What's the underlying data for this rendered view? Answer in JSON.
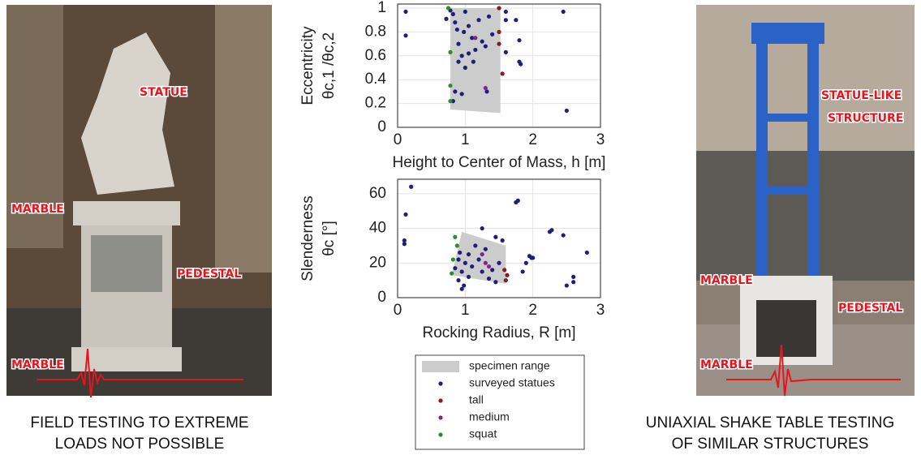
{
  "chart_data": [
    {
      "type": "scatter",
      "xlabel": "Height to Center of Mass, h [m]",
      "ylabel": [
        "Eccentricity",
        "θc,1 /θc,2"
      ],
      "xlim": [
        0,
        3
      ],
      "ylim": [
        0,
        1
      ],
      "xticks": [
        0,
        1,
        2,
        3
      ],
      "yticks": [
        0,
        0.2,
        0.4,
        0.6,
        0.8,
        1
      ],
      "grid": true,
      "series": [
        {
          "shape": "polygon",
          "color": "#cccccc",
          "x": [
            0.78,
            1.52,
            1.52,
            0.78
          ],
          "values": [
            1,
            1,
            0.12,
            0.15
          ]
        },
        {
          "color": "#1f1f7a",
          "x": [
            0.12,
            0.12,
            0.72,
            0.78,
            0.82,
            0.85,
            0.88,
            0.9,
            0.95,
            1.0,
            1.05,
            1.1,
            1.15,
            1.2,
            1.25,
            1.3,
            1.35,
            1.4,
            0.85,
            0.9,
            1.0,
            1.05,
            1.12,
            0.82,
            0.95,
            1.6,
            1.6,
            1.6,
            1.75,
            1.8,
            1.8,
            1.82,
            2.45,
            2.5,
            1.32,
            0.98
          ],
          "values": [
            0.97,
            0.77,
            0.91,
            0.98,
            0.95,
            0.88,
            0.82,
            0.7,
            0.6,
            0.97,
            0.85,
            0.75,
            0.65,
            0.9,
            0.72,
            0.68,
            0.93,
            0.78,
            0.3,
            0.55,
            0.5,
            0.62,
            0.55,
            0.22,
            0.28,
            0.97,
            0.9,
            0.63,
            0.9,
            0.73,
            0.55,
            0.53,
            0.97,
            0.14,
            0.3,
            0.8
          ]
        },
        {
          "color": "#8b1a1a",
          "x": [
            1.5,
            1.5,
            1.5,
            1.55
          ],
          "values": [
            1.0,
            0.8,
            0.7,
            0.45
          ]
        },
        {
          "color": "#7a2a8a",
          "x": [
            1.15,
            1.3
          ],
          "values": [
            0.75,
            0.33
          ]
        },
        {
          "color": "#2e8b2e",
          "x": [
            0.75,
            0.78,
            0.78,
            0.78
          ],
          "values": [
            1.0,
            0.63,
            0.35,
            0.22
          ]
        }
      ]
    },
    {
      "type": "scatter",
      "xlabel": "Rocking Radius, R [m]",
      "ylabel": [
        "Slenderness",
        "θc [°]"
      ],
      "xlim": [
        0,
        3
      ],
      "ylim": [
        0,
        66
      ],
      "xticks": [
        0,
        1,
        2,
        3
      ],
      "yticks": [
        0,
        20,
        40,
        60
      ],
      "grid": true,
      "legend": "below",
      "series": [
        {
          "name": "specimen range",
          "shape": "polygon",
          "color": "#cccccc",
          "x": [
            0.95,
            1.6,
            1.6,
            0.8
          ],
          "values": [
            38,
            30,
            8,
            13
          ]
        },
        {
          "name": "surveyed statues",
          "color": "#1f1f7a",
          "x": [
            0.2,
            0.12,
            0.1,
            0.1,
            1.75,
            1.78,
            1.25,
            1.55,
            1.45,
            2.25,
            2.28,
            2.45,
            2.8,
            1.95,
            1.98,
            1.9,
            2.0,
            2.6,
            2.6,
            2.5,
            1.85,
            0.9,
            0.95,
            0.98,
            1.0,
            1.05,
            1.1,
            1.2,
            1.3,
            1.4,
            1.5,
            0.85,
            0.9,
            0.95,
            1.05,
            1.35,
            1.45,
            1.15,
            1.25,
            0.92
          ],
          "values": [
            64,
            48,
            33,
            31,
            55,
            56,
            40,
            33,
            35,
            38,
            39,
            36,
            26,
            24,
            23,
            20,
            23,
            12,
            9,
            7,
            15,
            10,
            5,
            7,
            20,
            25,
            18,
            22,
            28,
            16,
            20,
            17,
            22,
            15,
            12,
            11,
            9,
            30,
            15,
            26
          ]
        },
        {
          "name": "tall",
          "color": "#8b1a1a",
          "x": [
            1.6,
            1.62,
            1.58
          ],
          "values": [
            10,
            13,
            16
          ]
        },
        {
          "name": "medium",
          "color": "#7a2a8a",
          "x": [
            1.25,
            1.3,
            1.35
          ],
          "values": [
            25,
            20,
            18
          ]
        },
        {
          "name": "squat",
          "color": "#2e8b2e",
          "x": [
            0.85,
            0.88,
            0.82,
            0.8
          ],
          "values": [
            35,
            30,
            22,
            14
          ]
        }
      ]
    }
  ],
  "left_photo": {
    "labels": [
      "STATUE",
      "MARBLE",
      "PEDESTAL",
      "MARBLE"
    ],
    "caption": [
      "FIELD TESTING TO EXTREME",
      "LOADS NOT POSSIBLE"
    ]
  },
  "right_photo": {
    "labels": [
      "STATUE-LIKE",
      "STRUCTURE",
      "MARBLE",
      "PEDESTAL",
      "MARBLE"
    ],
    "caption": [
      "UNIAXIAL SHAKE TABLE TESTING",
      "OF SIMILAR STRUCTURES"
    ]
  }
}
